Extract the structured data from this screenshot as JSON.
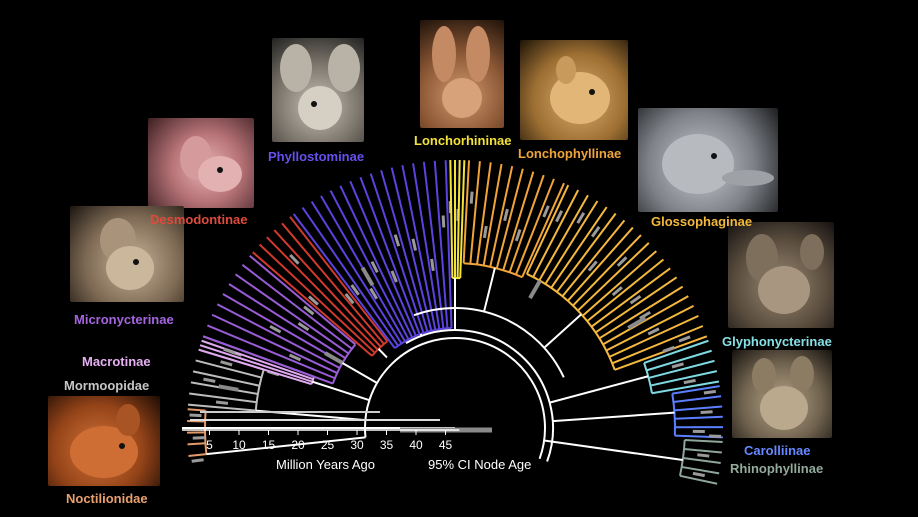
{
  "clades": [
    {
      "key": "desmodontinae",
      "name": "Desmodontinae",
      "color": "#d23a2e"
    },
    {
      "key": "phyllostominae",
      "name": "Phyllostominae",
      "color": "#5b43e0"
    },
    {
      "key": "lonchorhininae",
      "name": "Lonchorhininae",
      "color": "#f2e23a"
    },
    {
      "key": "lonchophyllinae",
      "name": "Lonchophyllinae",
      "color": "#f0a43a"
    },
    {
      "key": "glossophaginae",
      "name": "Glossophaginae",
      "color": "#f4b83e"
    },
    {
      "key": "micronycterinae",
      "name": "Micronycterinae",
      "color": "#9a5cd6"
    },
    {
      "key": "macrotinae",
      "name": "Macrotinae",
      "color": "#e0a8ef"
    },
    {
      "key": "mormoopidae",
      "name": "Mormoopidae",
      "color": "#bdbdbd"
    },
    {
      "key": "noctilionidae",
      "name": "Noctilionidae",
      "color": "#e59a6a"
    },
    {
      "key": "glyphonycterinae",
      "name": "Glyphonycterinae",
      "color": "#7fd9e0"
    },
    {
      "key": "carolliinae",
      "name": "Carolliinae",
      "color": "#5b7fff"
    },
    {
      "key": "rhinophyllinae",
      "name": "Rhinophyllinae",
      "color": "#8fa69a"
    }
  ],
  "axis": {
    "ticks": [
      "5",
      "10",
      "15",
      "20",
      "25",
      "30",
      "35",
      "40",
      "45"
    ],
    "xlabel": "Million Years Ago",
    "ci_label": "95% CI Node Age"
  },
  "photos": [
    "desmodontinae-photo",
    "phyllostominae-photo",
    "lonchorhininae-photo",
    "lonchophyllinae-photo",
    "glossophaginae-photo",
    "micronycterinae-photo",
    "glyphonycterinae-photo",
    "carolliinae-photo",
    "noctilionidae-photo"
  ]
}
